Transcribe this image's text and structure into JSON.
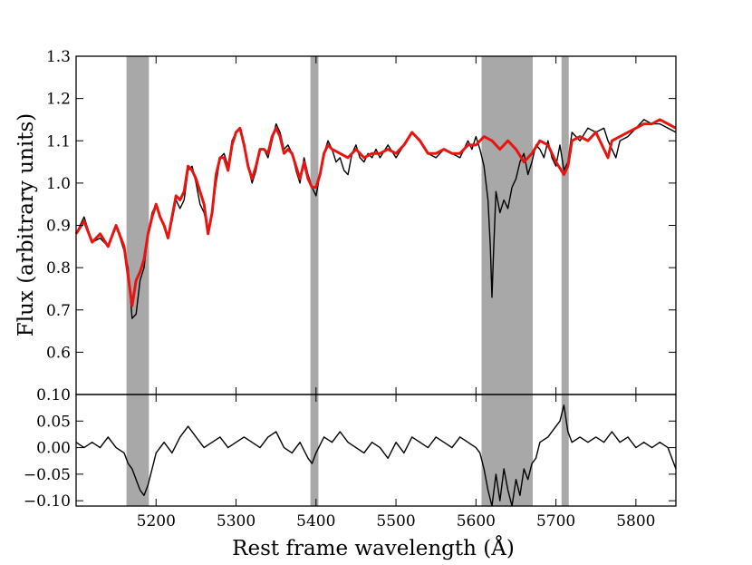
{
  "chart_data": [
    {
      "type": "line",
      "panel": "main",
      "ylabel": "Flux (arbitrary units)",
      "xlim": [
        5100,
        5850
      ],
      "ylim": [
        0.5,
        1.3
      ],
      "yticks": [
        "1.3",
        "1.2",
        "1.1",
        "1.0",
        "0.9",
        "0.8",
        "0.7",
        "0.6"
      ],
      "ytick_values": [
        1.3,
        1.2,
        1.1,
        1.0,
        0.9,
        0.8,
        0.7,
        0.6
      ],
      "masked_regions": [
        [
          5163,
          5191
        ],
        [
          5393,
          5403
        ],
        [
          5607,
          5671
        ],
        [
          5707,
          5716
        ]
      ],
      "series": [
        {
          "name": "",
          "color": "#000000",
          "x": [
            5100,
            5110,
            5120,
            5130,
            5140,
            5150,
            5160,
            5165,
            5170,
            5175,
            5180,
            5185,
            5190,
            5195,
            5200,
            5205,
            5210,
            5215,
            5220,
            5225,
            5230,
            5235,
            5240,
            5245,
            5250,
            5255,
            5260,
            5265,
            5270,
            5275,
            5280,
            5285,
            5290,
            5295,
            5300,
            5305,
            5310,
            5315,
            5320,
            5325,
            5330,
            5335,
            5340,
            5345,
            5350,
            5355,
            5360,
            5365,
            5370,
            5375,
            5380,
            5385,
            5390,
            5395,
            5400,
            5405,
            5410,
            5415,
            5420,
            5425,
            5430,
            5435,
            5440,
            5445,
            5450,
            5455,
            5460,
            5465,
            5470,
            5475,
            5480,
            5490,
            5500,
            5510,
            5520,
            5530,
            5540,
            5550,
            5560,
            5570,
            5580,
            5590,
            5595,
            5600,
            5605,
            5610,
            5615,
            5618,
            5620,
            5622,
            5625,
            5630,
            5635,
            5640,
            5645,
            5650,
            5655,
            5660,
            5665,
            5670,
            5675,
            5680,
            5685,
            5690,
            5695,
            5700,
            5705,
            5710,
            5715,
            5720,
            5725,
            5730,
            5740,
            5750,
            5760,
            5765,
            5770,
            5775,
            5780,
            5790,
            5800,
            5810,
            5820,
            5830,
            5840,
            5850
          ],
          "y": [
            0.88,
            0.92,
            0.86,
            0.87,
            0.85,
            0.9,
            0.84,
            0.8,
            0.68,
            0.69,
            0.77,
            0.8,
            0.88,
            0.93,
            0.95,
            0.92,
            0.9,
            0.87,
            0.91,
            0.96,
            0.94,
            0.96,
            1.03,
            1.04,
            1.0,
            0.95,
            0.93,
            0.89,
            0.93,
            1.0,
            1.06,
            1.07,
            1.04,
            1.1,
            1.12,
            1.13,
            1.09,
            1.04,
            1.0,
            1.03,
            1.08,
            1.08,
            1.06,
            1.1,
            1.14,
            1.12,
            1.08,
            1.09,
            1.07,
            1.03,
            1.0,
            1.06,
            1.02,
            0.99,
            0.97,
            1.02,
            1.07,
            1.1,
            1.08,
            1.05,
            1.06,
            1.03,
            1.02,
            1.07,
            1.09,
            1.06,
            1.05,
            1.07,
            1.06,
            1.08,
            1.06,
            1.09,
            1.06,
            1.09,
            1.12,
            1.1,
            1.07,
            1.06,
            1.08,
            1.07,
            1.06,
            1.1,
            1.08,
            1.11,
            1.08,
            1.04,
            0.96,
            0.85,
            0.73,
            0.84,
            0.98,
            0.93,
            0.96,
            0.94,
            0.99,
            1.01,
            1.05,
            1.07,
            1.02,
            1.05,
            1.09,
            1.08,
            1.06,
            1.1,
            1.06,
            1.04,
            1.09,
            1.03,
            1.05,
            1.12,
            1.11,
            1.1,
            1.13,
            1.12,
            1.13,
            1.1,
            1.08,
            1.06,
            1.1,
            1.11,
            1.13,
            1.15,
            1.14,
            1.14,
            1.13,
            1.12
          ]
        },
        {
          "name": "",
          "color": "#e8140f",
          "x": [
            5100,
            5110,
            5120,
            5130,
            5140,
            5150,
            5160,
            5165,
            5170,
            5175,
            5180,
            5185,
            5190,
            5195,
            5200,
            5205,
            5210,
            5215,
            5220,
            5225,
            5230,
            5235,
            5240,
            5245,
            5250,
            5255,
            5260,
            5265,
            5270,
            5275,
            5280,
            5285,
            5290,
            5295,
            5300,
            5305,
            5310,
            5315,
            5320,
            5325,
            5330,
            5335,
            5340,
            5345,
            5350,
            5355,
            5360,
            5365,
            5370,
            5375,
            5380,
            5385,
            5390,
            5395,
            5400,
            5405,
            5410,
            5415,
            5420,
            5430,
            5440,
            5450,
            5460,
            5470,
            5480,
            5490,
            5500,
            5510,
            5520,
            5530,
            5540,
            5550,
            5560,
            5570,
            5580,
            5590,
            5600,
            5610,
            5620,
            5630,
            5640,
            5650,
            5660,
            5670,
            5680,
            5690,
            5700,
            5710,
            5715,
            5720,
            5730,
            5740,
            5750,
            5760,
            5765,
            5770,
            5780,
            5790,
            5800,
            5810,
            5820,
            5830,
            5840,
            5850
          ],
          "y": [
            0.88,
            0.91,
            0.86,
            0.88,
            0.85,
            0.9,
            0.85,
            0.78,
            0.71,
            0.77,
            0.79,
            0.82,
            0.88,
            0.92,
            0.95,
            0.92,
            0.9,
            0.87,
            0.92,
            0.97,
            0.96,
            0.98,
            1.04,
            1.03,
            1.01,
            0.98,
            0.95,
            0.88,
            0.93,
            1.02,
            1.06,
            1.06,
            1.03,
            1.09,
            1.12,
            1.13,
            1.09,
            1.04,
            1.01,
            1.04,
            1.08,
            1.08,
            1.07,
            1.11,
            1.13,
            1.11,
            1.07,
            1.08,
            1.07,
            1.04,
            1.01,
            1.05,
            1.01,
            0.99,
            0.99,
            1.02,
            1.07,
            1.09,
            1.08,
            1.07,
            1.06,
            1.08,
            1.06,
            1.07,
            1.07,
            1.08,
            1.07,
            1.09,
            1.12,
            1.1,
            1.07,
            1.07,
            1.08,
            1.07,
            1.07,
            1.09,
            1.09,
            1.11,
            1.1,
            1.08,
            1.1,
            1.08,
            1.05,
            1.07,
            1.1,
            1.09,
            1.05,
            1.02,
            1.04,
            1.1,
            1.11,
            1.1,
            1.12,
            1.08,
            1.06,
            1.1,
            1.11,
            1.12,
            1.13,
            1.14,
            1.14,
            1.15,
            1.14,
            1.13
          ]
        }
      ]
    },
    {
      "type": "line",
      "panel": "residual",
      "xlabel": "Rest frame wavelength (Å)",
      "xlim": [
        5100,
        5850
      ],
      "ylim": [
        -0.11,
        0.1
      ],
      "xticks": [
        "5200",
        "5300",
        "5400",
        "5500",
        "5600",
        "5700",
        "5800"
      ],
      "xtick_values": [
        5200,
        5300,
        5400,
        5500,
        5600,
        5700,
        5800
      ],
      "yticks": [
        "0.10",
        "0.05",
        "0.00",
        "−0.05",
        "−0.10"
      ],
      "ytick_values": [
        0.1,
        0.05,
        0.0,
        -0.05,
        -0.1
      ],
      "masked_regions": [
        [
          5163,
          5191
        ],
        [
          5393,
          5403
        ],
        [
          5607,
          5671
        ],
        [
          5707,
          5716
        ]
      ],
      "series": [
        {
          "name": "",
          "color": "#000000",
          "x": [
            5100,
            5110,
            5120,
            5130,
            5140,
            5150,
            5160,
            5165,
            5170,
            5175,
            5180,
            5185,
            5190,
            5195,
            5200,
            5210,
            5220,
            5230,
            5240,
            5250,
            5260,
            5270,
            5280,
            5290,
            5300,
            5310,
            5320,
            5330,
            5340,
            5350,
            5360,
            5370,
            5380,
            5390,
            5395,
            5400,
            5410,
            5420,
            5430,
            5440,
            5450,
            5460,
            5470,
            5480,
            5490,
            5500,
            5510,
            5520,
            5530,
            5540,
            5550,
            5560,
            5570,
            5580,
            5590,
            5600,
            5605,
            5610,
            5615,
            5620,
            5625,
            5630,
            5635,
            5640,
            5645,
            5650,
            5655,
            5660,
            5665,
            5670,
            5675,
            5680,
            5690,
            5700,
            5705,
            5710,
            5715,
            5720,
            5730,
            5740,
            5750,
            5760,
            5770,
            5780,
            5790,
            5800,
            5810,
            5820,
            5830,
            5840,
            5850
          ],
          "y": [
            0.01,
            0.0,
            0.01,
            0.0,
            0.02,
            0.0,
            -0.01,
            -0.03,
            -0.04,
            -0.06,
            -0.08,
            -0.09,
            -0.07,
            -0.04,
            -0.01,
            0.01,
            -0.01,
            0.02,
            0.04,
            0.02,
            0.0,
            0.01,
            0.02,
            0.0,
            0.01,
            0.02,
            0.01,
            0.0,
            0.02,
            0.03,
            0.0,
            -0.01,
            0.01,
            -0.02,
            -0.03,
            -0.01,
            0.02,
            0.01,
            0.03,
            0.01,
            0.0,
            -0.01,
            0.01,
            0.0,
            -0.02,
            0.01,
            -0.01,
            0.02,
            0.01,
            0.0,
            0.02,
            0.01,
            0.0,
            0.02,
            0.01,
            0.0,
            -0.01,
            -0.04,
            -0.08,
            -0.11,
            -0.05,
            -0.1,
            -0.04,
            -0.08,
            -0.11,
            -0.06,
            -0.09,
            -0.04,
            -0.06,
            -0.03,
            -0.02,
            0.01,
            0.02,
            0.04,
            0.05,
            0.08,
            0.03,
            0.01,
            0.02,
            0.01,
            0.02,
            0.01,
            0.03,
            0.01,
            0.02,
            0.0,
            0.01,
            0.0,
            0.01,
            0.0,
            -0.04
          ]
        }
      ]
    }
  ]
}
